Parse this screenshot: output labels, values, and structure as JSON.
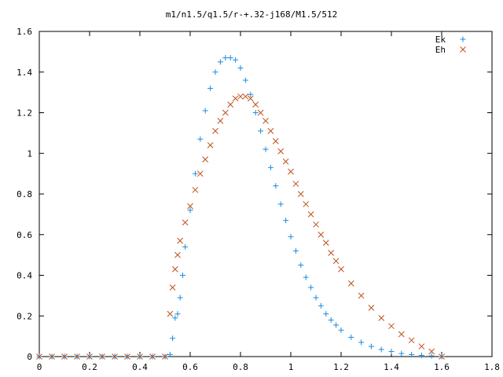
{
  "chart_data": {
    "type": "scatter",
    "title": "m1/n1.5/q1.5/r-+.32-j168/M1.5/512",
    "xlabel": "",
    "ylabel": "",
    "xlim": [
      0,
      1.8
    ],
    "ylim": [
      0,
      1.6
    ],
    "x_ticks": [
      "0",
      "0.2",
      "0.4",
      "0.6",
      "0.8",
      "1",
      "1.2",
      "1.4",
      "1.6",
      "1.8"
    ],
    "y_ticks": [
      "0",
      "0.2",
      "0.4",
      "0.6",
      "0.8",
      "1",
      "1.2",
      "1.4",
      "1.6"
    ],
    "grid": false,
    "legend_position": "top-right",
    "series": [
      {
        "name": "Ek",
        "marker": "plus",
        "color": "#1a8be0",
        "x": [
          0,
          0.05,
          0.1,
          0.15,
          0.2,
          0.25,
          0.3,
          0.35,
          0.4,
          0.45,
          0.5,
          0.52,
          0.53,
          0.54,
          0.55,
          0.56,
          0.57,
          0.58,
          0.6,
          0.62,
          0.64,
          0.66,
          0.68,
          0.7,
          0.72,
          0.74,
          0.76,
          0.78,
          0.8,
          0.82,
          0.84,
          0.86,
          0.88,
          0.9,
          0.92,
          0.94,
          0.96,
          0.98,
          1.0,
          1.02,
          1.04,
          1.06,
          1.08,
          1.1,
          1.12,
          1.14,
          1.16,
          1.18,
          1.2,
          1.24,
          1.28,
          1.32,
          1.36,
          1.4,
          1.44,
          1.48,
          1.52,
          1.56,
          1.6
        ],
        "y": [
          0,
          0,
          0,
          0,
          0,
          0,
          0,
          0,
          0,
          0,
          0,
          0.01,
          0.09,
          0.19,
          0.21,
          0.29,
          0.4,
          0.54,
          0.72,
          0.9,
          1.07,
          1.21,
          1.32,
          1.4,
          1.45,
          1.47,
          1.47,
          1.46,
          1.42,
          1.36,
          1.29,
          1.2,
          1.11,
          1.02,
          0.93,
          0.84,
          0.75,
          0.67,
          0.59,
          0.52,
          0.45,
          0.39,
          0.34,
          0.29,
          0.25,
          0.21,
          0.18,
          0.155,
          0.13,
          0.095,
          0.07,
          0.05,
          0.035,
          0.025,
          0.015,
          0.01,
          0.006,
          0.003,
          0
        ]
      },
      {
        "name": "Eh",
        "marker": "cross",
        "color": "#c0501a",
        "x": [
          0,
          0.05,
          0.1,
          0.15,
          0.2,
          0.25,
          0.3,
          0.35,
          0.4,
          0.45,
          0.5,
          0.52,
          0.53,
          0.54,
          0.55,
          0.56,
          0.58,
          0.6,
          0.62,
          0.64,
          0.66,
          0.68,
          0.7,
          0.72,
          0.74,
          0.76,
          0.78,
          0.8,
          0.82,
          0.84,
          0.86,
          0.88,
          0.9,
          0.92,
          0.94,
          0.96,
          0.98,
          1.0,
          1.02,
          1.04,
          1.06,
          1.08,
          1.1,
          1.12,
          1.14,
          1.16,
          1.18,
          1.2,
          1.24,
          1.28,
          1.32,
          1.36,
          1.4,
          1.44,
          1.48,
          1.52,
          1.56,
          1.6
        ],
        "y": [
          0,
          0,
          0,
          0,
          0,
          0,
          0,
          0,
          0,
          0,
          0,
          0.21,
          0.34,
          0.43,
          0.5,
          0.57,
          0.66,
          0.74,
          0.82,
          0.9,
          0.97,
          1.04,
          1.11,
          1.16,
          1.2,
          1.24,
          1.27,
          1.28,
          1.28,
          1.27,
          1.24,
          1.2,
          1.16,
          1.11,
          1.06,
          1.01,
          0.96,
          0.91,
          0.85,
          0.8,
          0.75,
          0.7,
          0.65,
          0.6,
          0.56,
          0.51,
          0.47,
          0.43,
          0.36,
          0.3,
          0.24,
          0.19,
          0.15,
          0.11,
          0.08,
          0.05,
          0.025,
          0
        ]
      }
    ]
  }
}
